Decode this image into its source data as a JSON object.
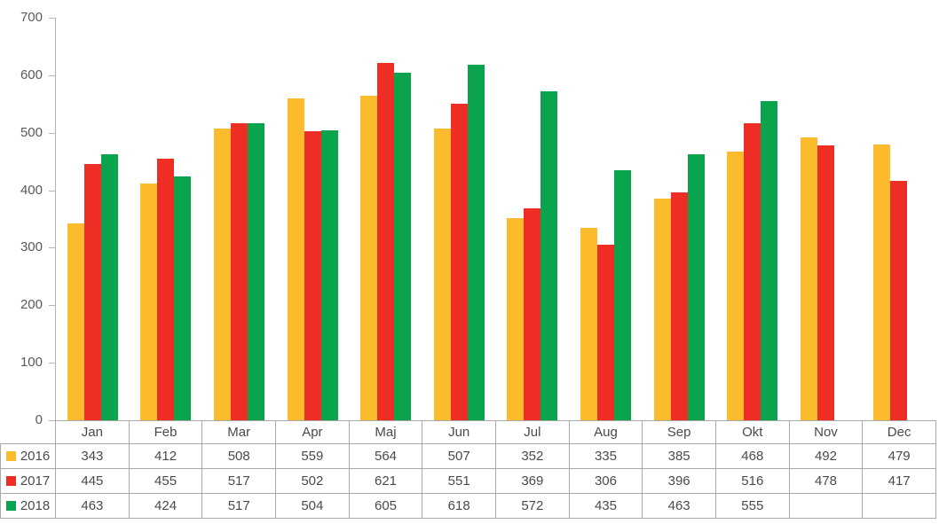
{
  "chart_data": {
    "type": "bar",
    "title": "",
    "xlabel": "",
    "ylabel": "",
    "categories": [
      "Jan",
      "Feb",
      "Mar",
      "Apr",
      "Maj",
      "Jun",
      "Jul",
      "Aug",
      "Sep",
      "Okt",
      "Nov",
      "Dec"
    ],
    "series": [
      {
        "name": "2016",
        "color": "#FCBB2C",
        "values": [
          343,
          412,
          508,
          559,
          564,
          507,
          352,
          335,
          385,
          468,
          492,
          479
        ]
      },
      {
        "name": "2017",
        "color": "#EE2D24",
        "values": [
          445,
          455,
          517,
          502,
          621,
          551,
          369,
          306,
          396,
          516,
          478,
          417
        ]
      },
      {
        "name": "2018",
        "color": "#0AA34E",
        "values": [
          463,
          424,
          517,
          504,
          605,
          618,
          572,
          435,
          463,
          555,
          null,
          null
        ]
      }
    ],
    "ylim": [
      0,
      700
    ],
    "yticks": [
      0,
      100,
      200,
      300,
      400,
      500,
      600,
      700
    ],
    "grid": false,
    "legend_position": "data-table-left",
    "data_table_shown": true
  },
  "colors": {
    "axis_line": "#b5b5b5",
    "table_border": "#a9a9a9",
    "axis_text": "#595959",
    "table_text": "#4a4a4a",
    "series_2016": "#FCBB2C",
    "series_2017": "#EE2D24",
    "series_2018": "#0AA34E",
    "background": "#ffffff"
  }
}
